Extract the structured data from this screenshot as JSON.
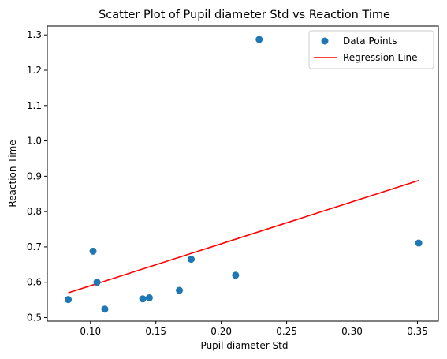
{
  "chart_data": {
    "type": "scatter",
    "title": "Scatter Plot of Pupil diameter Std vs Reaction Time",
    "xlabel": "Pupil diameter Std",
    "ylabel": "Reaction Time",
    "xlim": [
      0.067,
      0.366
    ],
    "ylim": [
      0.49,
      1.325
    ],
    "xticks": [
      0.1,
      0.15,
      0.2,
      0.25,
      0.3,
      0.35
    ],
    "xtick_labels": [
      "0.10",
      "0.15",
      "0.20",
      "0.25",
      "0.30",
      "0.35"
    ],
    "yticks": [
      0.5,
      0.6,
      0.7,
      0.8,
      0.9,
      1.0,
      1.1,
      1.2,
      1.3
    ],
    "ytick_labels": [
      "0.5",
      "0.6",
      "0.7",
      "0.8",
      "0.9",
      "1.0",
      "1.1",
      "1.2",
      "1.3"
    ],
    "grid": false,
    "legend_position": "top-right",
    "series": [
      {
        "name": "Data Points",
        "kind": "scatter",
        "color": "#1f77b4",
        "x": [
          0.083,
          0.102,
          0.105,
          0.111,
          0.14,
          0.145,
          0.168,
          0.177,
          0.211,
          0.229,
          0.351
        ],
        "y": [
          0.551,
          0.688,
          0.6,
          0.524,
          0.553,
          0.556,
          0.577,
          0.665,
          0.62,
          1.287,
          0.711
        ]
      },
      {
        "name": "Regression Line",
        "kind": "line",
        "color": "#ff0000",
        "x": [
          0.083,
          0.351
        ],
        "y": [
          0.57,
          0.888
        ]
      }
    ]
  }
}
